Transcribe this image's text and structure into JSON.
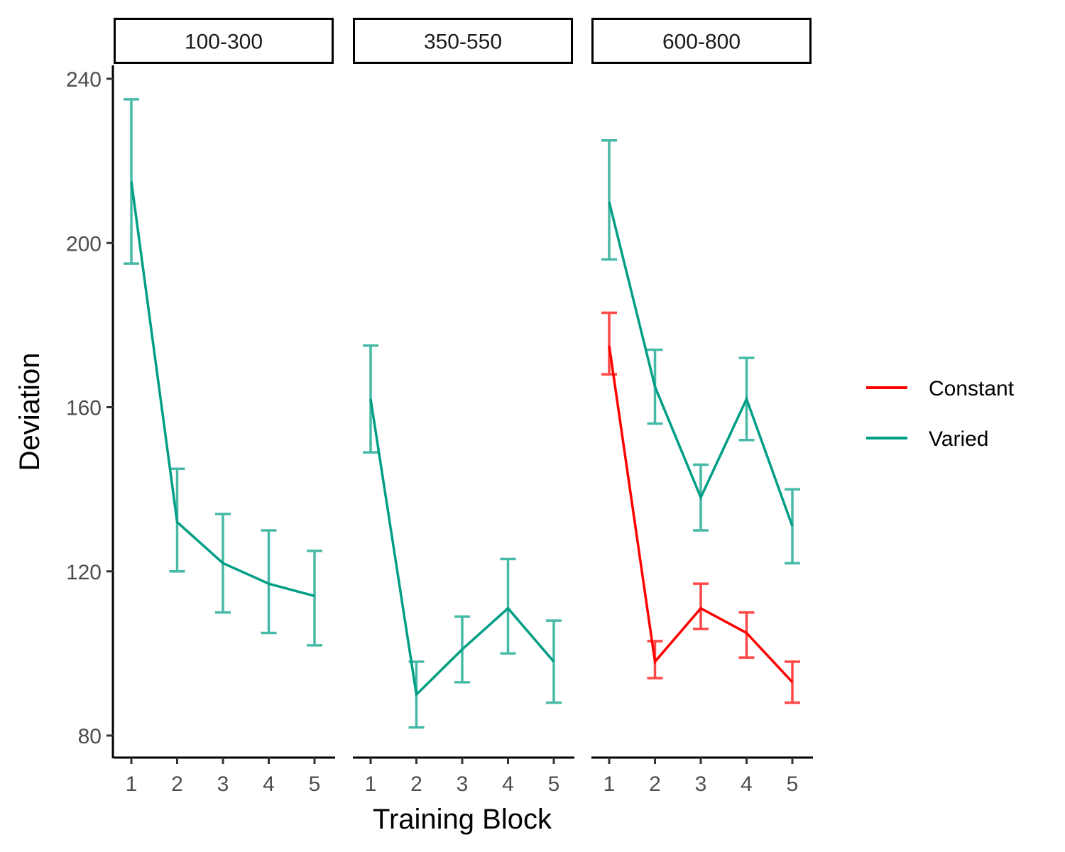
{
  "chart_data": {
    "type": "line",
    "xlabel": "Training Block",
    "ylabel": "Deviation",
    "ylim": [
      74,
      245
    ],
    "y_ticks": [
      "80",
      "120",
      "160",
      "200",
      "240"
    ],
    "x_ticks": [
      "1",
      "2",
      "3",
      "4",
      "5"
    ],
    "legend_position": "right",
    "legend": [
      {
        "name": "Constant",
        "color": "#ff0000"
      },
      {
        "name": "Varied",
        "color": "#009e85"
      }
    ],
    "panels": [
      {
        "label": "100-300",
        "series": [
          {
            "name": "Varied",
            "color": "#009e85",
            "x": [
              1,
              2,
              3,
              4,
              5
            ],
            "y": [
              215,
              132,
              122,
              117,
              114
            ],
            "lower": [
              195,
              120,
              110,
              105,
              102
            ],
            "upper": [
              235,
              145,
              134,
              130,
              125
            ]
          }
        ]
      },
      {
        "label": "350-550",
        "series": [
          {
            "name": "Varied",
            "color": "#009e85",
            "x": [
              1,
              2,
              3,
              4,
              5
            ],
            "y": [
              162,
              90,
              101,
              111,
              98
            ],
            "lower": [
              149,
              82,
              93,
              100,
              88
            ],
            "upper": [
              175,
              98,
              109,
              123,
              108
            ]
          }
        ]
      },
      {
        "label": "600-800",
        "series": [
          {
            "name": "Constant",
            "color": "#ff0000",
            "x": [
              1,
              2,
              3,
              4,
              5
            ],
            "y": [
              175,
              98,
              111,
              105,
              93
            ],
            "lower": [
              168,
              94,
              106,
              99,
              88
            ],
            "upper": [
              183,
              103,
              117,
              110,
              98
            ]
          },
          {
            "name": "Varied",
            "color": "#009e85",
            "x": [
              1,
              2,
              3,
              4,
              5
            ],
            "y": [
              210,
              165,
              138,
              162,
              131
            ],
            "lower": [
              196,
              156,
              130,
              152,
              122
            ],
            "upper": [
              225,
              174,
              146,
              172,
              140
            ]
          }
        ]
      }
    ]
  }
}
